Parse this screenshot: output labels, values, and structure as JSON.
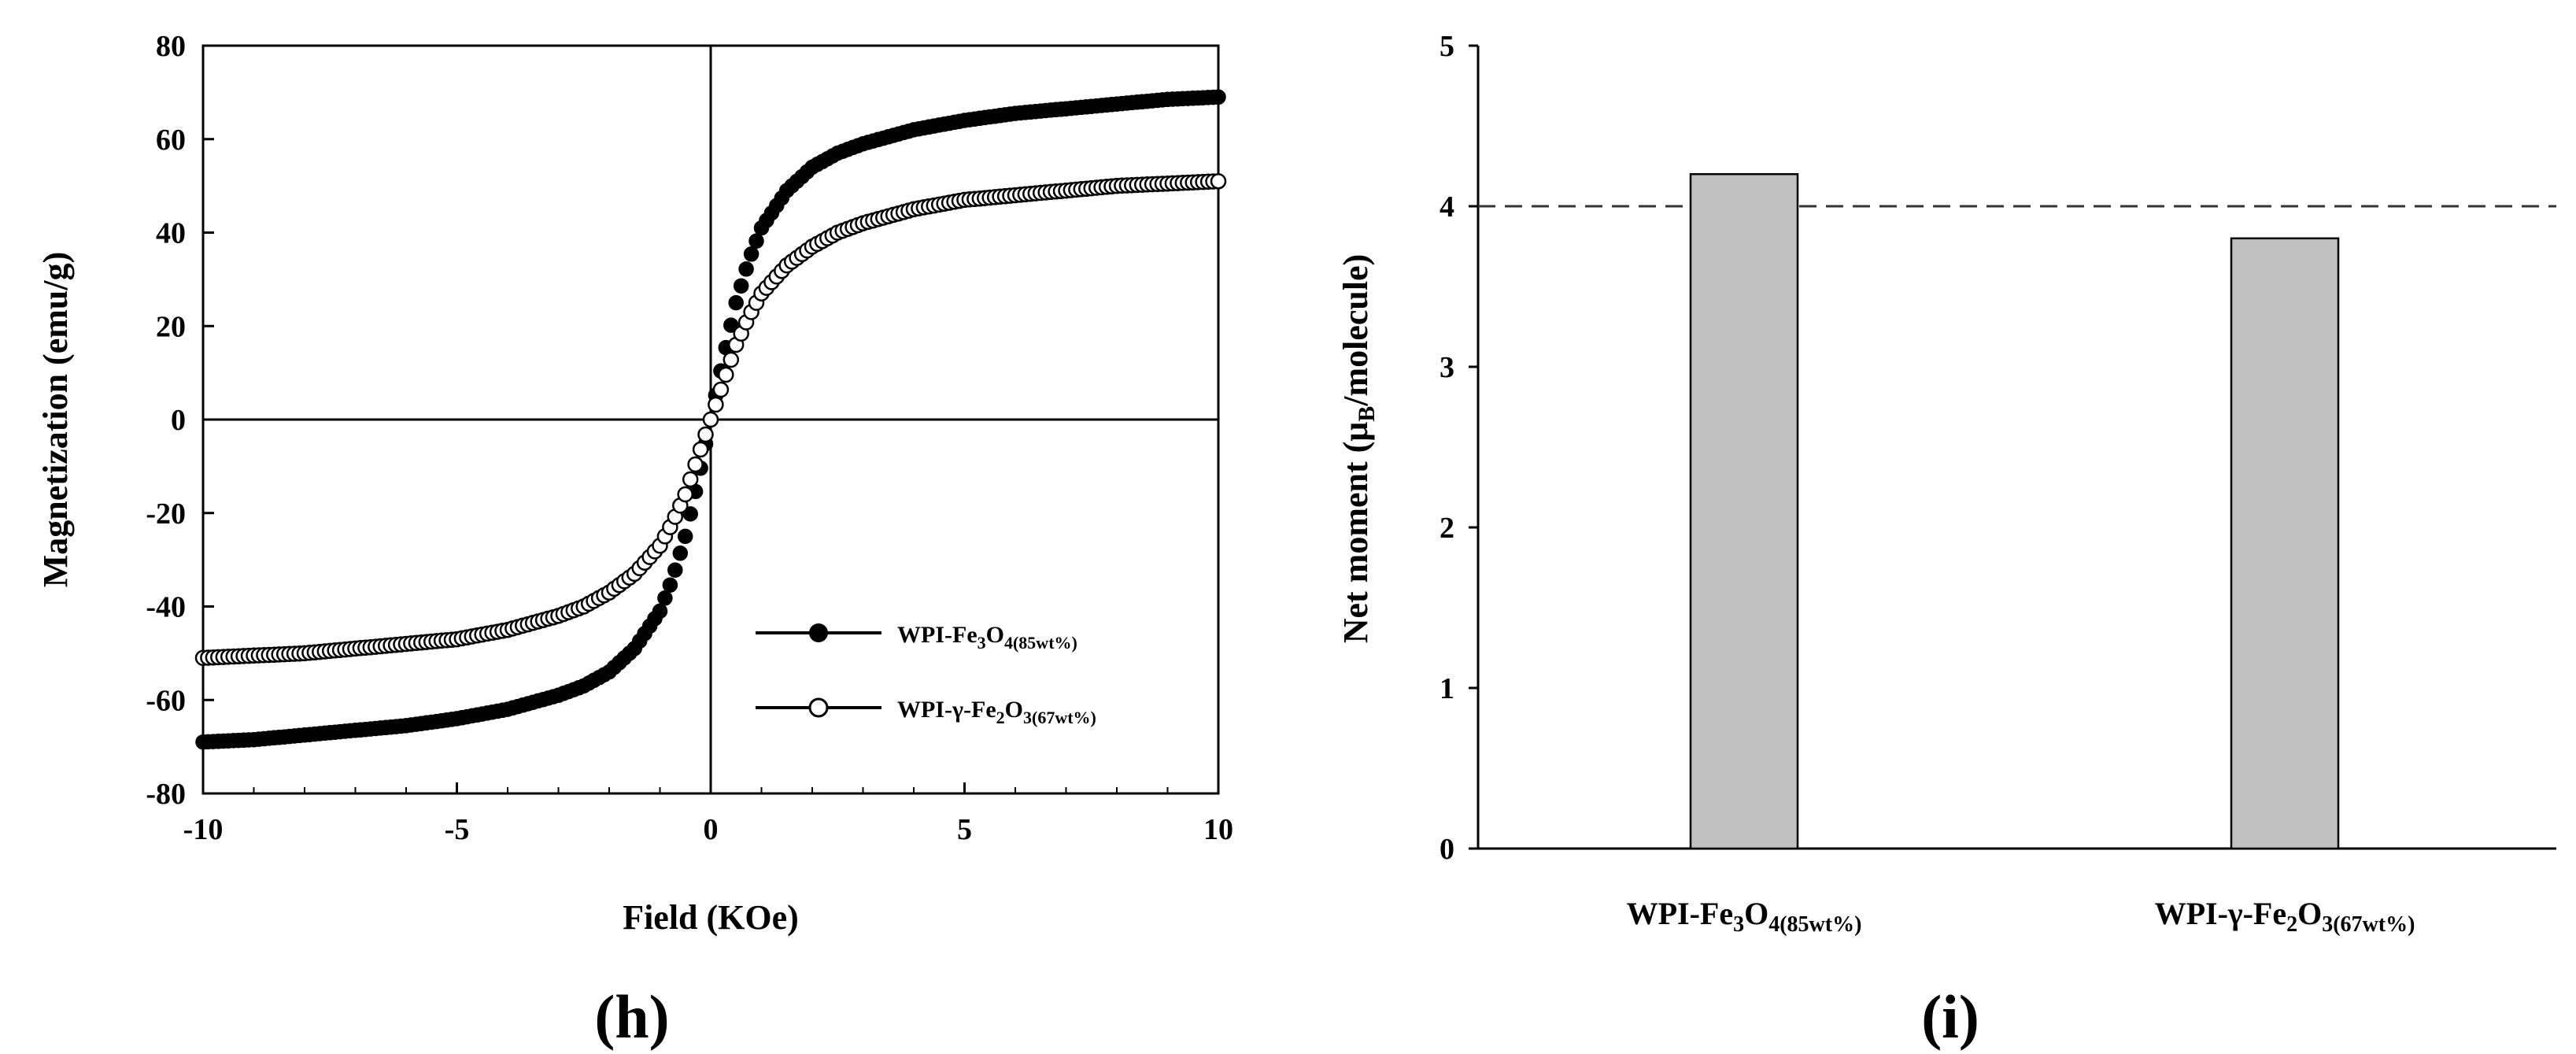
{
  "chart_data": [
    {
      "type": "scatter",
      "panel_label": "(h)",
      "xlabel": "Field (KOe)",
      "ylabel": "Magnetization (emu/g)",
      "xlim": [
        -10,
        10
      ],
      "ylim": [
        -80,
        80
      ],
      "xticks": [
        -10,
        -5,
        0,
        5,
        10
      ],
      "yticks": [
        -80,
        -60,
        -40,
        -20,
        0,
        20,
        40,
        60,
        80
      ],
      "legend_position": "bottom-right",
      "grid": false,
      "series": [
        {
          "name": "WPI-Fe3O4(85wt%)",
          "legend": {
            "prefix": "WPI-Fe",
            "sub1": "3",
            "mid": "O",
            "sub2": "4(85wt%)"
          },
          "marker": "filled-circle",
          "color": "#000000",
          "x": [
            -10,
            -9,
            -8,
            -7,
            -6,
            -5,
            -4,
            -3,
            -2.5,
            -2,
            -1.5,
            -1,
            -0.75,
            -0.5,
            -0.25,
            0,
            0.25,
            0.5,
            0.75,
            1,
            1.5,
            2,
            2.5,
            3,
            4,
            5,
            6,
            7,
            8,
            9,
            10
          ],
          "y": [
            -69,
            -68.5,
            -67.5,
            -66.5,
            -65.5,
            -64,
            -62,
            -59,
            -57,
            -54,
            -49,
            -41,
            -34,
            -25,
            -13,
            0,
            13,
            25,
            34,
            41,
            49,
            54,
            57,
            59,
            62,
            64,
            65.5,
            66.5,
            67.5,
            68.5,
            69
          ]
        },
        {
          "name": "WPI-γ-Fe2O3(67wt%)",
          "legend": {
            "prefix": "WPI-γ-Fe",
            "sub1": "2",
            "mid": "O",
            "sub2": "3(67wt%)"
          },
          "marker": "open-circle",
          "color": "#000000",
          "x": [
            -10,
            -9,
            -8,
            -7,
            -6,
            -5,
            -4,
            -3,
            -2.5,
            -2,
            -1.5,
            -1,
            -0.75,
            -0.5,
            -0.25,
            0,
            0.25,
            0.5,
            0.75,
            1,
            1.5,
            2,
            2.5,
            3,
            4,
            5,
            6,
            7,
            8,
            9,
            10
          ],
          "y": [
            -51,
            -50.5,
            -50,
            -49,
            -48,
            -47,
            -45,
            -42,
            -40,
            -37,
            -33,
            -27,
            -22,
            -16,
            -8,
            0,
            8,
            16,
            22,
            27,
            33,
            37,
            40,
            42,
            45,
            47,
            48,
            49,
            50,
            50.5,
            51
          ]
        }
      ]
    },
    {
      "type": "bar",
      "panel_label": "(i)",
      "ylabel": "Net moment (μB/molecule)",
      "ylabel_parts": {
        "before": "Net moment (μ",
        "sub": "B",
        "after": "/molecule)"
      },
      "ylim": [
        0,
        5
      ],
      "yticks": [
        0,
        1,
        2,
        3,
        4,
        5
      ],
      "categories": [
        "WPI-Fe3O4(85wt%)",
        "WPI-γ-Fe2O3(67wt%)"
      ],
      "category_labels": [
        {
          "prefix": "WPI-Fe",
          "sub1": "3",
          "mid": "O",
          "sub2": "4(85wt%)"
        },
        {
          "prefix": "WPI-γ-Fe",
          "sub1": "2",
          "mid": "O",
          "sub2": "3(67wt%)"
        }
      ],
      "values": [
        4.2,
        3.8
      ],
      "bar_color": "#c0c0c0",
      "reference_line": {
        "y": 4,
        "style": "dashed"
      },
      "grid": false
    }
  ]
}
